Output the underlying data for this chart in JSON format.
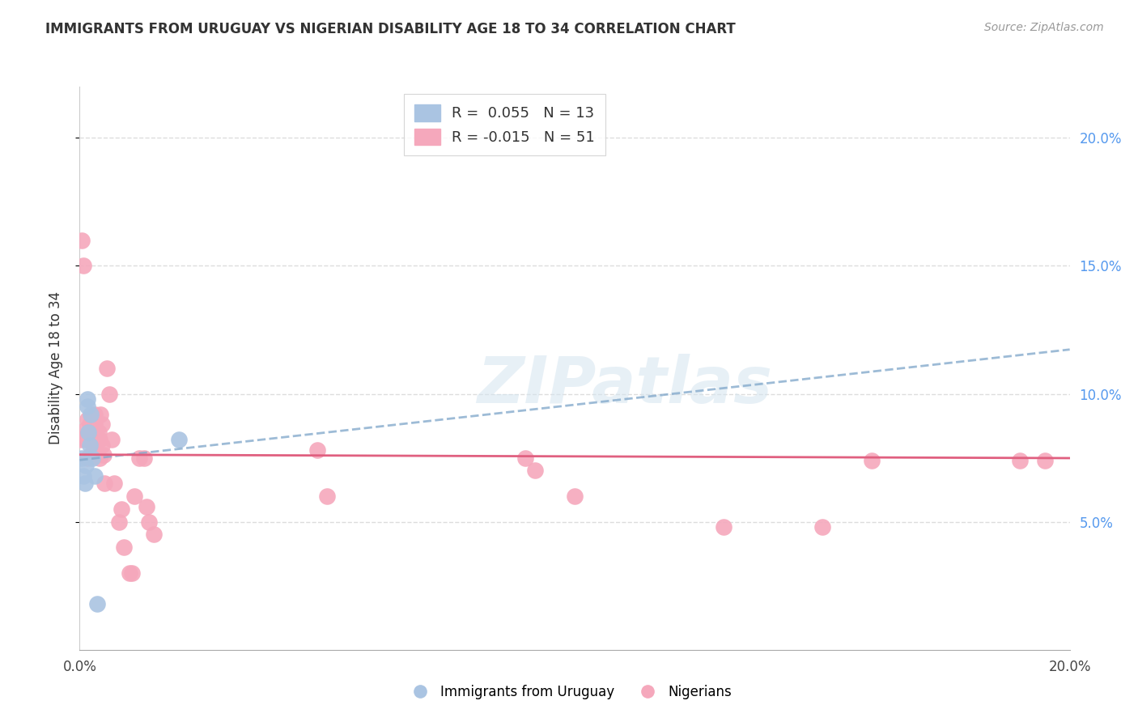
{
  "title": "IMMIGRANTS FROM URUGUAY VS NIGERIAN DISABILITY AGE 18 TO 34 CORRELATION CHART",
  "source": "Source: ZipAtlas.com",
  "ylabel": "Disability Age 18 to 34",
  "xlim": [
    0.0,
    0.2
  ],
  "ylim": [
    0.0,
    0.22
  ],
  "xticks": [
    0.0,
    0.05,
    0.1,
    0.15,
    0.2
  ],
  "yticks": [
    0.05,
    0.1,
    0.15,
    0.2
  ],
  "ytick_labels_right": [
    "5.0%",
    "10.0%",
    "15.0%",
    "20.0%"
  ],
  "xtick_labels": [
    "0.0%",
    "",
    "",
    "",
    "20.0%"
  ],
  "legend_blue_label": "R =  0.055   N = 13",
  "legend_pink_label": "R = -0.015   N = 51",
  "legend_blue_series": "Immigrants from Uruguay",
  "legend_pink_series": "Nigerians",
  "blue_R": 0.055,
  "pink_R": -0.015,
  "blue_color": "#aac4e2",
  "pink_color": "#f5a8bc",
  "blue_trend_color": "#85aacc",
  "pink_trend_color": "#e06080",
  "watermark": "ZIPatlas",
  "blue_x": [
    0.0005,
    0.0008,
    0.001,
    0.0012,
    0.0015,
    0.0015,
    0.0018,
    0.002,
    0.0022,
    0.0025,
    0.003,
    0.0035,
    0.02
  ],
  "blue_y": [
    0.075,
    0.068,
    0.065,
    0.072,
    0.095,
    0.098,
    0.085,
    0.08,
    0.092,
    0.075,
    0.068,
    0.018,
    0.082
  ],
  "pink_x": [
    0.0003,
    0.0005,
    0.0007,
    0.001,
    0.0012,
    0.0015,
    0.0015,
    0.0018,
    0.002,
    0.0022,
    0.0025,
    0.0025,
    0.0028,
    0.003,
    0.003,
    0.0032,
    0.0035,
    0.0035,
    0.0038,
    0.004,
    0.004,
    0.0042,
    0.0045,
    0.0045,
    0.0048,
    0.005,
    0.0055,
    0.006,
    0.0065,
    0.007,
    0.008,
    0.0085,
    0.009,
    0.01,
    0.0105,
    0.011,
    0.012,
    0.013,
    0.0135,
    0.014,
    0.015,
    0.048,
    0.05,
    0.09,
    0.092,
    0.1,
    0.13,
    0.15,
    0.16,
    0.19,
    0.195
  ],
  "pink_y": [
    0.082,
    0.16,
    0.15,
    0.086,
    0.082,
    0.09,
    0.075,
    0.082,
    0.088,
    0.076,
    0.09,
    0.085,
    0.082,
    0.092,
    0.088,
    0.086,
    0.082,
    0.076,
    0.085,
    0.082,
    0.075,
    0.092,
    0.088,
    0.08,
    0.076,
    0.065,
    0.11,
    0.1,
    0.082,
    0.065,
    0.05,
    0.055,
    0.04,
    0.03,
    0.03,
    0.06,
    0.075,
    0.075,
    0.056,
    0.05,
    0.045,
    0.078,
    0.06,
    0.075,
    0.07,
    0.06,
    0.048,
    0.048,
    0.074,
    0.074,
    0.074
  ]
}
